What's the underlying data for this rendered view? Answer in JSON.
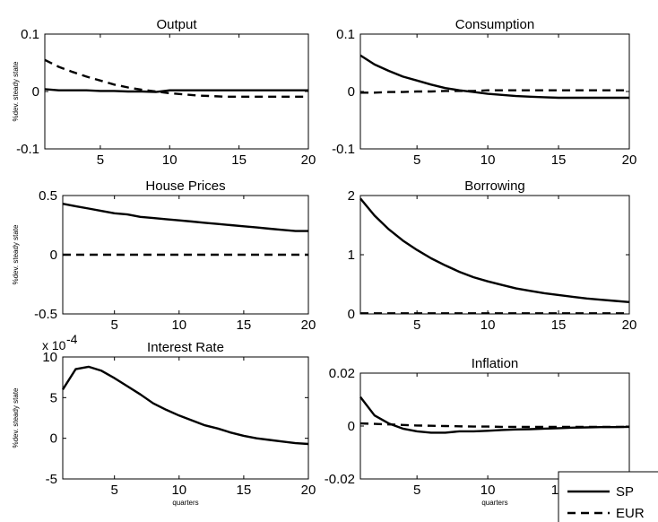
{
  "colors": {
    "line": "#000000",
    "axis": "#000000",
    "background": "#ffffff"
  },
  "legend": {
    "placement": "bottom-right",
    "entries": [
      {
        "label": "SP",
        "style": "solid"
      },
      {
        "label": "EUR",
        "style": "dashed"
      }
    ]
  },
  "chart_data": [
    {
      "id": "output",
      "type": "line",
      "title": "Output",
      "ylabel": "%dev. steady state",
      "xlabel": "",
      "xlim": [
        1,
        20
      ],
      "ylim": [
        -0.1,
        0.1
      ],
      "xticks": [
        5,
        10,
        15,
        20
      ],
      "yticks": [
        -0.1,
        0,
        0.1
      ],
      "yticklabels": [
        "-0.1",
        "0",
        "0.1"
      ],
      "x": [
        1,
        2,
        3,
        4,
        5,
        6,
        7,
        8,
        9,
        10,
        11,
        12,
        13,
        14,
        15,
        16,
        17,
        18,
        19,
        20
      ],
      "series": [
        {
          "style": "solid",
          "values": [
            0.004,
            0.002,
            0.002,
            0.002,
            0.001,
            0.001,
            0.0,
            0.0,
            -0.001,
            0.002,
            0.002,
            0.002,
            0.002,
            0.002,
            0.002,
            0.002,
            0.002,
            0.002,
            0.002,
            0.002
          ]
        },
        {
          "style": "dashed",
          "values": [
            0.055,
            0.043,
            0.034,
            0.026,
            0.019,
            0.012,
            0.007,
            0.003,
            0.0,
            -0.003,
            -0.005,
            -0.007,
            -0.008,
            -0.009,
            -0.009,
            -0.009,
            -0.009,
            -0.009,
            -0.009,
            -0.009
          ]
        }
      ]
    },
    {
      "id": "consumption",
      "type": "line",
      "title": "Consumption",
      "ylabel": "",
      "xlabel": "",
      "xlim": [
        1,
        20
      ],
      "ylim": [
        -0.1,
        0.1
      ],
      "xticks": [
        5,
        10,
        15,
        20
      ],
      "yticks": [
        -0.1,
        0,
        0.1
      ],
      "yticklabels": [
        "-0.1",
        "0",
        "0.1"
      ],
      "x": [
        1,
        2,
        3,
        4,
        5,
        6,
        7,
        8,
        9,
        10,
        11,
        12,
        13,
        14,
        15,
        16,
        17,
        18,
        19,
        20
      ],
      "series": [
        {
          "style": "solid",
          "values": [
            0.063,
            0.047,
            0.036,
            0.026,
            0.019,
            0.012,
            0.006,
            0.002,
            -0.001,
            -0.004,
            -0.006,
            -0.008,
            -0.009,
            -0.01,
            -0.011,
            -0.011,
            -0.011,
            -0.011,
            -0.011,
            -0.011
          ]
        },
        {
          "style": "dashed",
          "values": [
            -0.002,
            -0.002,
            -0.001,
            -0.001,
            0.0,
            0.0,
            0.001,
            0.001,
            0.001,
            0.002,
            0.002,
            0.002,
            0.002,
            0.002,
            0.002,
            0.002,
            0.002,
            0.002,
            0.002,
            0.002
          ]
        }
      ]
    },
    {
      "id": "house-prices",
      "type": "line",
      "title": "House Prices",
      "ylabel": "%dev. steady state",
      "xlabel": "",
      "xlim": [
        1,
        20
      ],
      "ylim": [
        -0.5,
        0.5
      ],
      "xticks": [
        5,
        10,
        15,
        20
      ],
      "yticks": [
        -0.5,
        0,
        0.5
      ],
      "yticklabels": [
        "-0.5",
        "0",
        "0.5"
      ],
      "x": [
        1,
        2,
        3,
        4,
        5,
        6,
        7,
        8,
        9,
        10,
        11,
        12,
        13,
        14,
        15,
        16,
        17,
        18,
        19,
        20
      ],
      "series": [
        {
          "style": "solid",
          "values": [
            0.43,
            0.41,
            0.39,
            0.37,
            0.35,
            0.34,
            0.32,
            0.31,
            0.3,
            0.29,
            0.28,
            0.27,
            0.26,
            0.25,
            0.24,
            0.23,
            0.22,
            0.21,
            0.2,
            0.2
          ]
        },
        {
          "style": "dashed",
          "values": [
            0,
            0,
            0,
            0,
            0,
            0,
            0,
            0,
            0,
            0,
            0,
            0,
            0,
            0,
            0,
            0,
            0,
            0,
            0,
            0
          ]
        }
      ]
    },
    {
      "id": "borrowing",
      "type": "line",
      "title": "Borrowing",
      "ylabel": "",
      "xlabel": "",
      "xlim": [
        1,
        20
      ],
      "ylim": [
        0,
        2
      ],
      "xticks": [
        5,
        10,
        15,
        20
      ],
      "yticks": [
        0,
        1,
        2
      ],
      "yticklabels": [
        "0",
        "1",
        "2"
      ],
      "x": [
        1,
        2,
        3,
        4,
        5,
        6,
        7,
        8,
        9,
        10,
        11,
        12,
        13,
        14,
        15,
        16,
        17,
        18,
        19,
        20
      ],
      "series": [
        {
          "style": "solid",
          "values": [
            1.95,
            1.66,
            1.43,
            1.24,
            1.08,
            0.94,
            0.82,
            0.71,
            0.62,
            0.55,
            0.49,
            0.43,
            0.39,
            0.35,
            0.32,
            0.29,
            0.26,
            0.24,
            0.22,
            0.2
          ]
        },
        {
          "style": "dashed",
          "values": [
            0.01,
            0.01,
            0.01,
            0.01,
            0.01,
            0.01,
            0.01,
            0.01,
            0.01,
            0.01,
            0.01,
            0.01,
            0.01,
            0.01,
            0.01,
            0.01,
            0.01,
            0.01,
            0.01,
            0.01
          ]
        }
      ]
    },
    {
      "id": "interest-rate",
      "type": "line",
      "title": "Interest Rate",
      "ylabel": "%dev. steady state",
      "xlabel": "quarters",
      "xlim": [
        1,
        20
      ],
      "ylim": [
        -5,
        10
      ],
      "multiplier": "x 10",
      "exponent": "-4",
      "xticks": [
        5,
        10,
        15,
        20
      ],
      "yticks": [
        -5,
        0,
        5,
        10
      ],
      "yticklabels": [
        "-5",
        "0",
        "5",
        "10"
      ],
      "x": [
        1,
        2,
        3,
        4,
        5,
        6,
        7,
        8,
        9,
        10,
        11,
        12,
        13,
        14,
        15,
        16,
        17,
        18,
        19,
        20
      ],
      "series": [
        {
          "style": "solid",
          "values": [
            6.0,
            8.5,
            8.8,
            8.3,
            7.4,
            6.4,
            5.4,
            4.3,
            3.5,
            2.8,
            2.2,
            1.6,
            1.2,
            0.7,
            0.3,
            0.0,
            -0.2,
            -0.4,
            -0.6,
            -0.7
          ]
        }
      ]
    },
    {
      "id": "inflation",
      "type": "line",
      "title": "Inflation",
      "ylabel": "",
      "xlabel": "quarters",
      "xlim": [
        1,
        20
      ],
      "ylim": [
        -0.02,
        0.02
      ],
      "xticks": [
        5,
        10,
        15,
        20
      ],
      "yticks": [
        -0.02,
        0,
        0.02
      ],
      "yticklabels": [
        "-0.02",
        "0",
        "0.02"
      ],
      "x": [
        1,
        2,
        3,
        4,
        5,
        6,
        7,
        8,
        9,
        10,
        11,
        12,
        13,
        14,
        15,
        16,
        17,
        18,
        19,
        20
      ],
      "series": [
        {
          "style": "solid",
          "values": [
            0.011,
            0.004,
            0.001,
            -0.001,
            -0.002,
            -0.0025,
            -0.0025,
            -0.002,
            -0.002,
            -0.0018,
            -0.0015,
            -0.0013,
            -0.0012,
            -0.001,
            -0.0008,
            -0.0006,
            -0.0005,
            -0.0004,
            -0.0004,
            -0.0003
          ]
        },
        {
          "style": "dashed",
          "values": [
            0.001,
            0.0008,
            0.0006,
            0.0004,
            0.0002,
            0.0001,
            0.0,
            -0.0001,
            -0.0002,
            -0.0002,
            -0.0003,
            -0.0003,
            -0.0003,
            -0.0003,
            -0.0003,
            -0.0003,
            -0.0003,
            -0.0003,
            -0.0003,
            -0.0003
          ]
        }
      ]
    }
  ]
}
